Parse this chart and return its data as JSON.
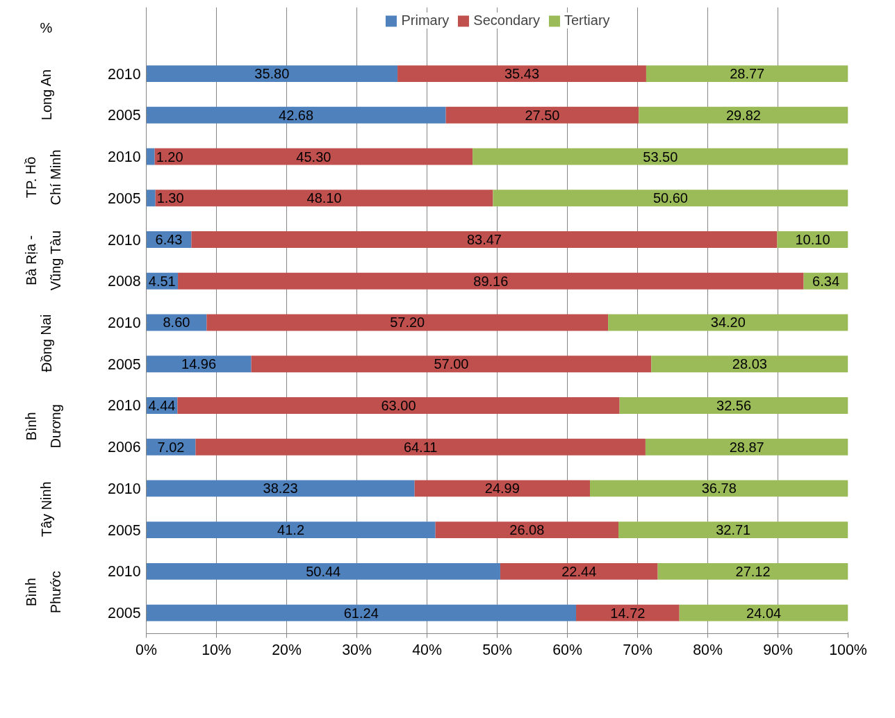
{
  "chart_data": {
    "type": "bar",
    "orientation": "horizontal",
    "stacked": true,
    "ylabel": "%",
    "categories": [
      "2010",
      "2005",
      "2010",
      "2005",
      "2010",
      "2008",
      "2010",
      "2005",
      "2010",
      "2006",
      "2010",
      "2005",
      "2010",
      "2005"
    ],
    "annotations": [
      "Long An",
      "TP. Hồ Chí Minh",
      "Bà Rịa - Vũng Tàu",
      "Đồng Nai",
      "Bình Dương",
      "Tây Ninh",
      "Bình Phước"
    ],
    "series": [
      {
        "name": "Primary",
        "color": "#4f81bd",
        "values": [
          35.8,
          42.68,
          1.2,
          1.3,
          6.43,
          4.51,
          8.6,
          14.96,
          4.44,
          7.02,
          38.23,
          41.2,
          50.44,
          61.24
        ],
        "value_labels": [
          "35.80",
          "42.68",
          "1.20",
          "1.30",
          "6.43",
          "4.51",
          "8.60",
          "14.96",
          "4.44",
          "7.02",
          "38.23",
          "41.2",
          "50.44",
          "61.24"
        ]
      },
      {
        "name": "Secondary",
        "color": "#c0504d",
        "values": [
          35.43,
          27.5,
          45.3,
          48.1,
          83.47,
          89.16,
          57.2,
          57.0,
          63.0,
          64.11,
          24.99,
          26.08,
          22.44,
          14.72
        ],
        "value_labels": [
          "35.43",
          "27.50",
          "45.30",
          "48.10",
          "83.47",
          "89.16",
          "57.20",
          "57.00",
          "63.00",
          "64.11",
          "24.99",
          "26.08",
          "22.44",
          "14.72"
        ]
      },
      {
        "name": "Tertiary",
        "color": "#9bbb59",
        "values": [
          28.77,
          29.82,
          53.5,
          50.6,
          10.1,
          6.34,
          34.2,
          28.03,
          32.56,
          28.87,
          36.78,
          32.71,
          27.12,
          24.04
        ],
        "value_labels": [
          "28.77",
          "29.82",
          "53.50",
          "50.60",
          "10.10",
          "6.34",
          "34.20",
          "28.03",
          "32.56",
          "28.87",
          "36.78",
          "32.71",
          "27.12",
          "24.04"
        ]
      }
    ],
    "xlim": [
      0,
      100
    ],
    "xticks": [
      {
        "value": 0,
        "label": "0%"
      },
      {
        "value": 10,
        "label": "10%"
      },
      {
        "value": 20,
        "label": "20%"
      },
      {
        "value": 30,
        "label": "30%"
      },
      {
        "value": 40,
        "label": "40%"
      },
      {
        "value": 50,
        "label": "50%"
      },
      {
        "value": 60,
        "label": "60%"
      },
      {
        "value": 70,
        "label": "70%"
      },
      {
        "value": 80,
        "label": "80%"
      },
      {
        "value": 90,
        "label": "90%"
      },
      {
        "value": 100,
        "label": "100%"
      }
    ],
    "grid": "x",
    "legend": "top"
  }
}
